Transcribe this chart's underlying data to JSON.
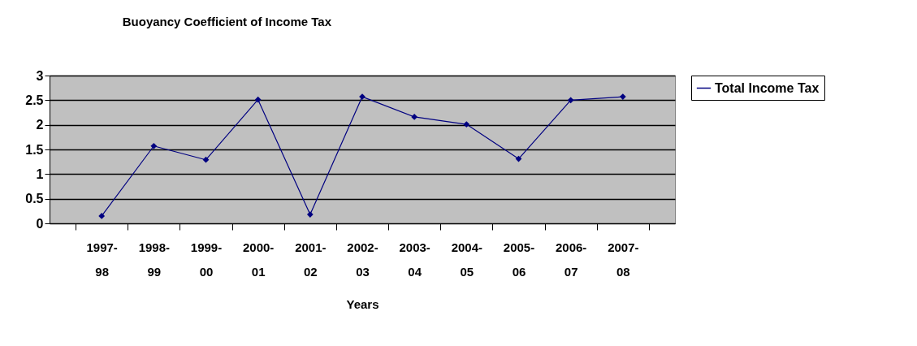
{
  "chart_data": {
    "type": "line",
    "title": "Buoyancy Coefficient of Income  Tax",
    "xlabel": "Years",
    "categories": [
      "1997-98",
      "1998-99",
      "1999-00",
      "2000-01",
      "2001-02",
      "2002-03",
      "2003-04",
      "2004-05",
      "2005-06",
      "2006-07",
      "2007-08"
    ],
    "series": [
      {
        "name": "Total Income Tax",
        "color": "#000080",
        "values": [
          0.15,
          1.57,
          1.29,
          2.51,
          0.18,
          2.57,
          2.16,
          2.01,
          1.31,
          2.5,
          2.57
        ]
      }
    ],
    "ylim": [
      0,
      3
    ],
    "yticks": [
      0,
      0.5,
      1,
      1.5,
      2,
      2.5,
      3
    ],
    "grid": "y",
    "legend": "right",
    "marker": "diamond",
    "line_style": "solid"
  }
}
